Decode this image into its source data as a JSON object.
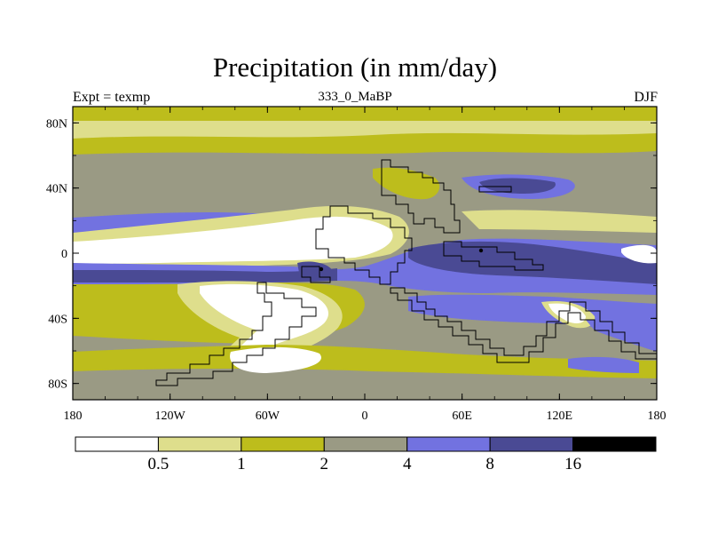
{
  "chart_data": {
    "type": "filled contour map",
    "title": "Precipitation (in mm/day)",
    "subtitle_left": "Expt = texmp",
    "subtitle_center": "333_0_MaBP",
    "subtitle_right": "DJF",
    "x_ticks": [
      "180",
      "120W",
      "60W",
      "0",
      "60E",
      "120E",
      "180"
    ],
    "x_tick_values": [
      -180,
      -120,
      -60,
      0,
      60,
      120,
      180
    ],
    "y_ticks": [
      "80N",
      "40N",
      "0",
      "40S",
      "80S"
    ],
    "y_tick_values": [
      80,
      40,
      0,
      -40,
      -80
    ],
    "xlim": [
      -180,
      180
    ],
    "ylim": [
      -90,
      90
    ],
    "colorbar": {
      "labels": [
        "0.5",
        "1",
        "2",
        "4",
        "8",
        "16"
      ],
      "levels": [
        0.5,
        1,
        2,
        4,
        8,
        16
      ],
      "colors": [
        "#ffffff",
        "#dede8c",
        "#bdbd1c",
        "#9a9a84",
        "#7272e0",
        "#4a4a94",
        "#000000"
      ]
    }
  }
}
